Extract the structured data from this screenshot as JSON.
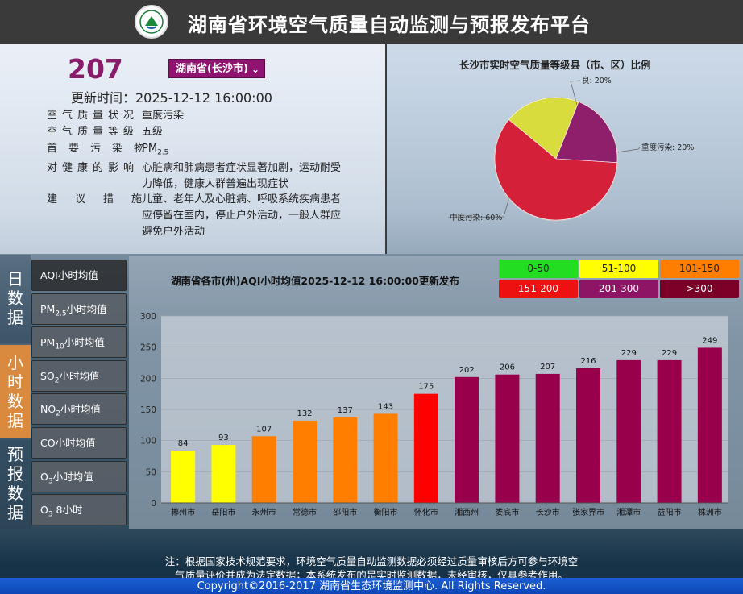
{
  "header": {
    "title": "湖南省环境空气质量自动监测与预报发布平台"
  },
  "summary": {
    "aqi": "207",
    "region": "湖南省(长沙市)",
    "update_time": "更新时间：2025-12-12 16:00:00",
    "rows": [
      {
        "key": "空气质量状况",
        "value": "重度污染"
      },
      {
        "key": "空气质量等级",
        "value": "五级"
      },
      {
        "key": "首要污染物",
        "value_main": "PM",
        "value_sub": "2.5"
      },
      {
        "key": "对健康的影响",
        "value": "心脏病和肺病患者症状显著加剧，运动耐受力降低，健康人群普遍出现症状"
      },
      {
        "key": "建议措施",
        "value": "儿童、老年人及心脏病、呼吸系统疾病患者应停留在室内，停止户外活动，一般人群应避免户外活动"
      }
    ]
  },
  "pie": {
    "title": "长沙市实时空气质量等级县（市、区）比例",
    "slices": [
      {
        "label": "良: 20%",
        "value": 20,
        "color": "#d8dc3c"
      },
      {
        "label": "重度污染: 20%",
        "value": 20,
        "color": "#8e1f6b"
      },
      {
        "label": "中度污染: 60%",
        "value": 60,
        "color": "#d42038"
      }
    ]
  },
  "side_nav": [
    {
      "label": "日数据"
    },
    {
      "label": "小时数据"
    },
    {
      "label": "预报数据"
    }
  ],
  "metrics": [
    {
      "main": "AQI小时均值"
    },
    {
      "main": "PM",
      "sub": "2.5",
      "tail": "小时均值"
    },
    {
      "main": "PM",
      "sub": "10",
      "tail": "小时均值"
    },
    {
      "main": "SO",
      "sub": "2",
      "tail": "小时均值"
    },
    {
      "main": "NO",
      "sub": "2",
      "tail": "小时均值"
    },
    {
      "main": "CO小时均值"
    },
    {
      "main": "O",
      "sub": "3",
      "tail": "小时均值"
    },
    {
      "main": "O",
      "sub": "3",
      "tail": " 8小时"
    }
  ],
  "chart": {
    "title": "湖南省各市(州)AQI小时均值2025-12-12 16:00:00更新发布"
  },
  "legend": [
    {
      "label": "0-50",
      "color": "#22dd22",
      "text": "#222222"
    },
    {
      "label": "51-100",
      "color": "#ffff00",
      "text": "#222222"
    },
    {
      "label": "101-150",
      "color": "#ff7e00",
      "text": "#222222"
    },
    {
      "label": "151-200",
      "color": "#ee1111",
      "text": "#ffffff"
    },
    {
      "label": "201-300",
      "color": "#8e1466",
      "text": "#ffffff"
    },
    {
      "label": ">300",
      "color": "#7a0028",
      "text": "#ffffff"
    }
  ],
  "chart_data": {
    "type": "bar",
    "title": "湖南省各市(州)AQI小时均值2025-12-12 16:00:00更新发布",
    "categories": [
      "郴州市",
      "岳阳市",
      "永州市",
      "常德市",
      "邵阳市",
      "衡阳市",
      "怀化市",
      "湘西州",
      "娄底市",
      "长沙市",
      "张家界市",
      "湘潭市",
      "益阳市",
      "株洲市"
    ],
    "values": [
      84,
      93,
      107,
      132,
      137,
      143,
      175,
      202,
      206,
      207,
      216,
      229,
      229,
      249
    ],
    "colors": [
      "#ffff00",
      "#ffff00",
      "#ff7e00",
      "#ff7e00",
      "#ff7e00",
      "#ff7e00",
      "#ff0000",
      "#99004c",
      "#99004c",
      "#99004c",
      "#99004c",
      "#99004c",
      "#99004c",
      "#99004c"
    ],
    "ylim": [
      0,
      300
    ],
    "yticks": [
      0,
      50,
      100,
      150,
      200,
      250,
      300
    ],
    "xlabel": "",
    "ylabel": "",
    "grid": true
  },
  "footer": {
    "note_line1": "注：根据国家技术规范要求，环境空气质量自动监测数据必须经过质量审核后方可参与环境空",
    "note_line2": "气质量评价并成为法定数据；本系统发布的是实时监测数据，未经审核，仅具参考作用。",
    "copyright": "Copyright©2016-2017 湖南省生态环境监测中心. All Rights Reserved."
  }
}
